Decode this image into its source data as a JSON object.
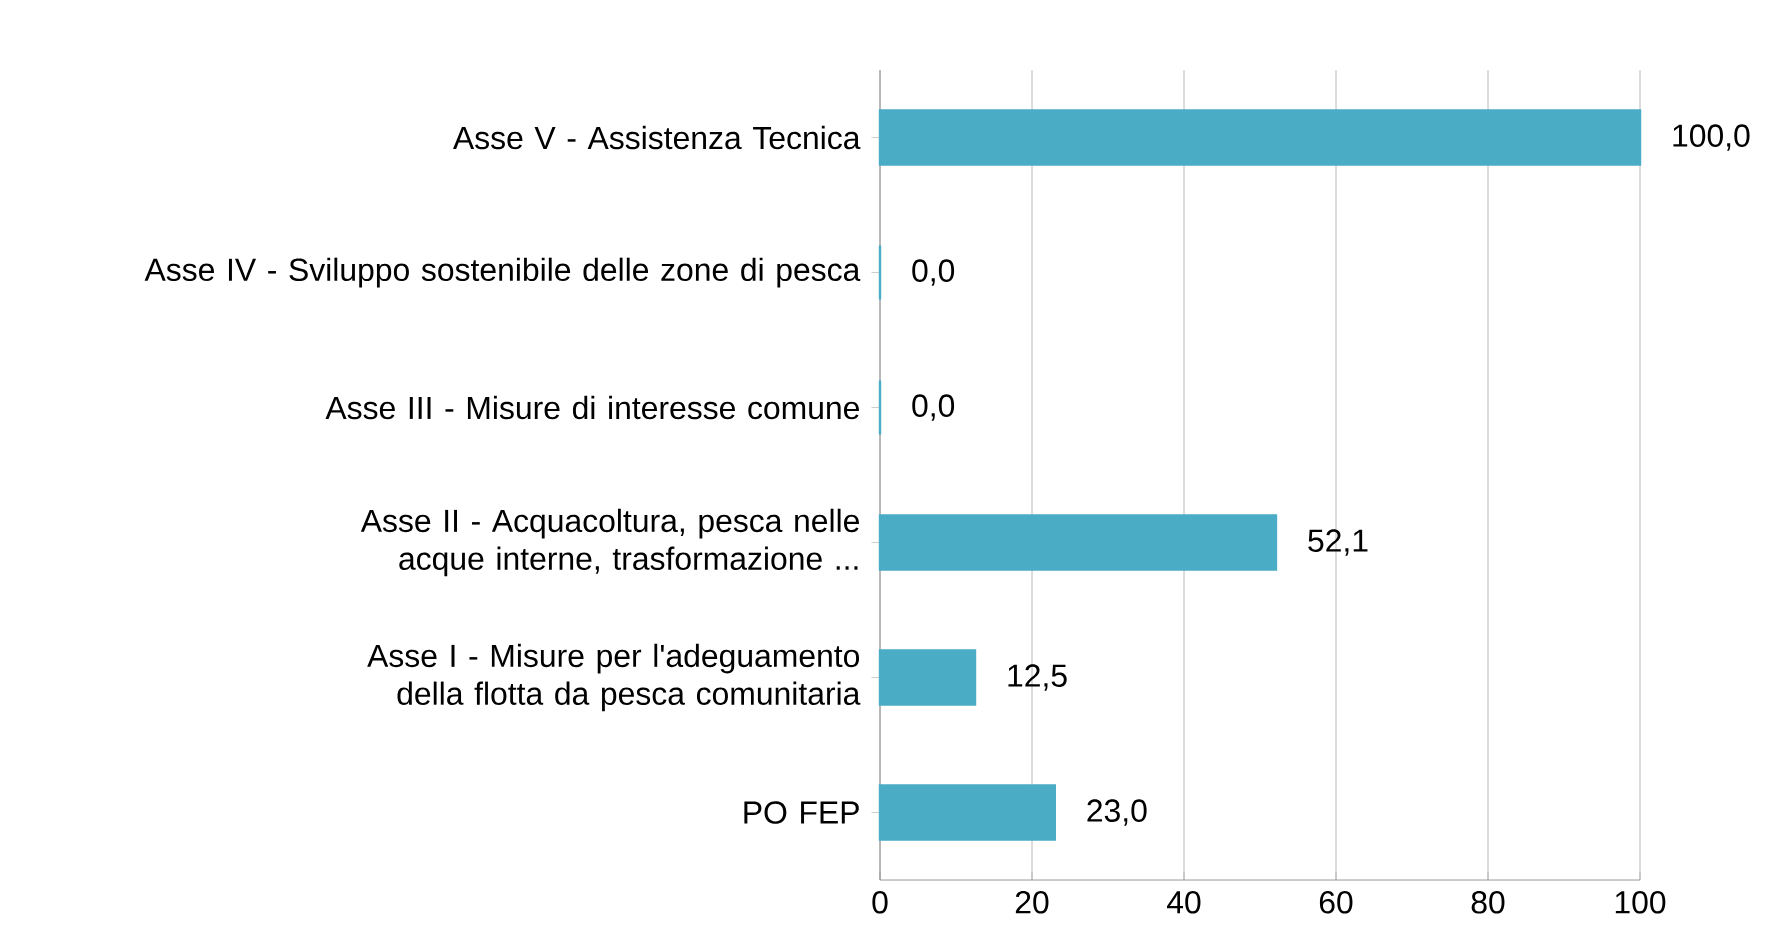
{
  "chart_data": {
    "type": "bar",
    "orientation": "horizontal",
    "categories": [
      "Asse V - Assistenza Tecnica",
      "Asse IV - Sviluppo sostenibile delle zone di pesca",
      "Asse III - Misure di interesse comune",
      "Asse II - Acquacoltura, pesca nelle acque interne, trasformazione ...",
      "Asse I - Misure per l'adeguamento della flotta da pesca comunitaria",
      "PO FEP"
    ],
    "values": [
      100.0,
      0.0,
      0.0,
      52.1,
      12.5,
      23.0
    ],
    "value_labels": [
      "100,0",
      "0,0",
      "0,0",
      "52,1",
      "12,5",
      "23,0"
    ],
    "color": "#4bacc6",
    "xlim": [
      0,
      100
    ],
    "xticks": [
      0,
      20,
      40,
      60,
      80,
      100
    ],
    "grid": "x"
  }
}
